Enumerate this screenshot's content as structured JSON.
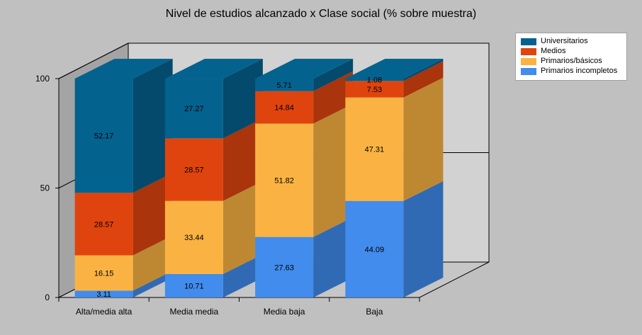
{
  "chart_data": {
    "type": "bar",
    "stacked": true,
    "three_d": true,
    "title": "Nivel de estudios alcanzado x Clase social (% sobre muestra)",
    "xlabel": "",
    "ylabel": "",
    "ylim": [
      0,
      100
    ],
    "yticks": [
      "0",
      "50",
      "100"
    ],
    "legend_position": "top-right",
    "categories": [
      "Alta/media alta",
      "Media media",
      "Media baja",
      "Baja"
    ],
    "series": [
      {
        "name": "Primarios incompletos",
        "color": "#418ced",
        "values": [
          3.11,
          10.71,
          27.63,
          44.09
        ],
        "labels": [
          "3.11",
          "10.71",
          "27.63",
          "44.09"
        ]
      },
      {
        "name": "Primarios/básicos",
        "color": "#fab343",
        "values": [
          16.15,
          33.44,
          51.82,
          47.31
        ],
        "labels": [
          "16.15",
          "33.44",
          "51.82",
          "47.31"
        ]
      },
      {
        "name": "Medios",
        "color": "#e0440e",
        "values": [
          28.57,
          28.57,
          14.84,
          7.53
        ],
        "labels": [
          "28.57",
          "28.57",
          "14.84",
          "7.53"
        ]
      },
      {
        "name": "Universitarios",
        "color": "#04628f",
        "values": [
          52.17,
          27.27,
          5.71,
          1.08
        ],
        "labels": [
          "52.17",
          "27.27",
          "5.71",
          "1.08"
        ]
      }
    ],
    "legend_order": [
      "Universitarios",
      "Medios",
      "Primarios/básicos",
      "Primarios incompletos"
    ]
  }
}
